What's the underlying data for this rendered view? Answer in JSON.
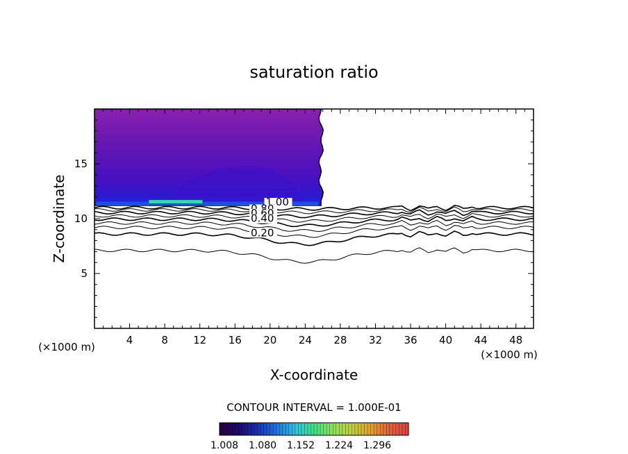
{
  "chart_data": {
    "type": "contour",
    "title": "saturation ratio",
    "xlabel": "X-coordinate",
    "ylabel": "Z-coordinate",
    "x_unit": "(×1000 m)",
    "y_unit": "(×1000 m)",
    "xlim": [
      0,
      50
    ],
    "ylim": [
      0,
      20
    ],
    "x_ticks": [
      4,
      8,
      12,
      16,
      20,
      24,
      28,
      32,
      36,
      40,
      44,
      48
    ],
    "y_ticks": [
      5,
      10,
      15
    ],
    "contour_interval_label": "CONTOUR INTERVAL = 1.000E-01",
    "contour_labels": [
      {
        "text": "1.00",
        "x": 19.5,
        "z": 11.2
      },
      {
        "text": "0.80",
        "x": 17.8,
        "z": 10.6
      },
      {
        "text": "0.60",
        "x": 17.8,
        "z": 10.2
      },
      {
        "text": "0.40",
        "x": 17.8,
        "z": 9.7
      },
      {
        "text": "0.20",
        "x": 17.8,
        "z": 8.4
      }
    ],
    "contour_lines": [
      {
        "base": 11.0
      },
      {
        "base": 10.8
      },
      {
        "base": 10.55
      },
      {
        "base": 10.25
      },
      {
        "base": 9.95
      },
      {
        "base": 9.6
      },
      {
        "base": 9.2
      },
      {
        "base": 8.6
      },
      {
        "base": 7.1
      }
    ],
    "shaded_region": {
      "x_range": [
        0,
        25.8
      ],
      "z_range": [
        11.2,
        20
      ],
      "colormin": 1.008,
      "colormax": 1.32
    },
    "colorbar": {
      "tick_labels": [
        "1.008",
        "1.080",
        "1.152",
        "1.224",
        "1.296"
      ],
      "colors": [
        "#2a0040",
        "#1a0a6e",
        "#1a30b0",
        "#2070e0",
        "#30c0e0",
        "#40e080",
        "#90e060",
        "#c0d040",
        "#e0a030",
        "#e06040",
        "#e04040"
      ]
    }
  }
}
